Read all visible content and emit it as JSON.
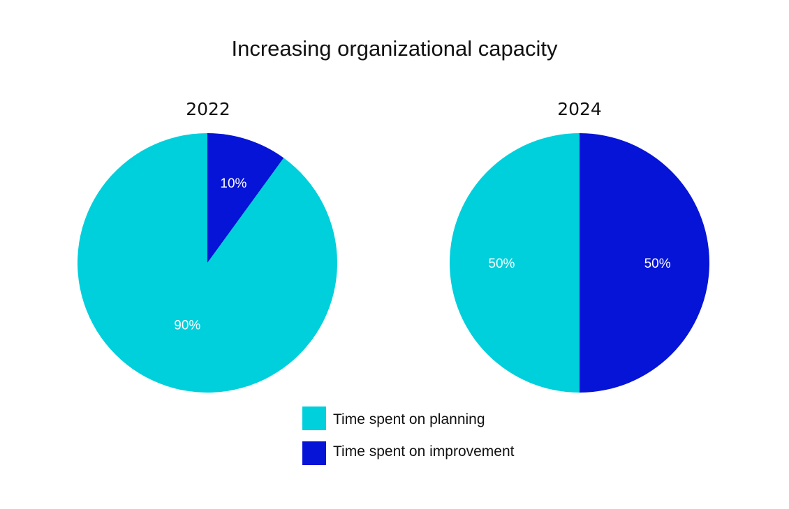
{
  "chart_data": {
    "type": "pie",
    "title": "Increasing organizational capacity",
    "categories": [
      "Time spent on planning",
      "Time spent on improvement"
    ],
    "colors": [
      "#00CFDC",
      "#0514D6"
    ],
    "legend": "bottom-center",
    "pies": [
      {
        "label": "2022",
        "values": [
          90,
          10
        ],
        "value_labels": [
          "90%",
          "10%"
        ]
      },
      {
        "label": "2024",
        "values": [
          50,
          50
        ],
        "value_labels": [
          "50%",
          "50%"
        ]
      }
    ]
  }
}
